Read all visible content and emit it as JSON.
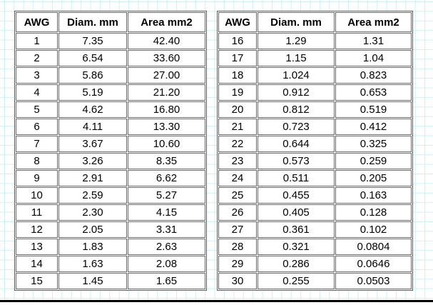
{
  "background": {
    "paper_color": "#ffffff",
    "grid_color": "#cdf1f3",
    "bottom_rule_color": "#000000"
  },
  "chart_data": {
    "type": "table",
    "title": "",
    "tables": [
      {
        "name": "awg-table-1-15",
        "headers": [
          "AWG",
          "Diam. mm",
          "Area mm2"
        ],
        "rows": [
          [
            "1",
            "7.35",
            "42.40"
          ],
          [
            "2",
            "6.54",
            "33.60"
          ],
          [
            "3",
            "5.86",
            "27.00"
          ],
          [
            "4",
            "5.19",
            "21.20"
          ],
          [
            "5",
            "4.62",
            "16.80"
          ],
          [
            "6",
            "4.11",
            "13.30"
          ],
          [
            "7",
            "3.67",
            "10.60"
          ],
          [
            "8",
            "3.26",
            "8.35"
          ],
          [
            "9",
            "2.91",
            "6.62"
          ],
          [
            "10",
            "2.59",
            "5.27"
          ],
          [
            "11",
            "2.30",
            "4.15"
          ],
          [
            "12",
            "2.05",
            "3.31"
          ],
          [
            "13",
            "1.83",
            "2.63"
          ],
          [
            "14",
            "1.63",
            "2.08"
          ],
          [
            "15",
            "1.45",
            "1.65"
          ]
        ]
      },
      {
        "name": "awg-table-16-30",
        "headers": [
          "AWG",
          "Diam. mm",
          "Area mm2"
        ],
        "rows": [
          [
            "16",
            "1.29",
            "1.31"
          ],
          [
            "17",
            "1.15",
            "1.04"
          ],
          [
            "18",
            "1.024",
            "0.823"
          ],
          [
            "19",
            "0.912",
            "0.653"
          ],
          [
            "20",
            "0.812",
            "0.519"
          ],
          [
            "21",
            "0.723",
            "0.412"
          ],
          [
            "22",
            "0.644",
            "0.325"
          ],
          [
            "23",
            "0.573",
            "0.259"
          ],
          [
            "24",
            "0.511",
            "0.205"
          ],
          [
            "25",
            "0.455",
            "0.163"
          ],
          [
            "26",
            "0.405",
            "0.128"
          ],
          [
            "27",
            "0.361",
            "0.102"
          ],
          [
            "28",
            "0.321",
            "0.0804"
          ],
          [
            "29",
            "0.286",
            "0.0646"
          ],
          [
            "30",
            "0.255",
            "0.0503"
          ]
        ]
      }
    ]
  }
}
